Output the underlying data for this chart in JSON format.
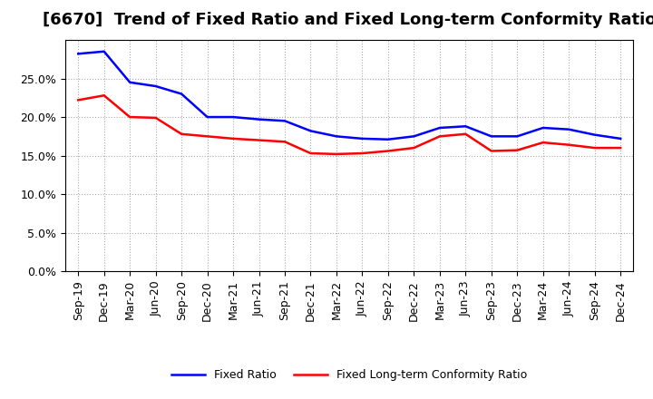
{
  "title": "[6670]  Trend of Fixed Ratio and Fixed Long-term Conformity Ratio",
  "x_labels": [
    "Sep-19",
    "Dec-19",
    "Mar-20",
    "Jun-20",
    "Sep-20",
    "Dec-20",
    "Mar-21",
    "Jun-21",
    "Sep-21",
    "Dec-21",
    "Mar-22",
    "Jun-22",
    "Sep-22",
    "Dec-22",
    "Mar-23",
    "Jun-23",
    "Sep-23",
    "Dec-23",
    "Mar-24",
    "Jun-24",
    "Sep-24",
    "Dec-24"
  ],
  "fixed_ratio": [
    0.282,
    0.285,
    0.245,
    0.24,
    0.23,
    0.2,
    0.2,
    0.197,
    0.195,
    0.182,
    0.175,
    0.172,
    0.171,
    0.175,
    0.186,
    0.188,
    0.175,
    0.175,
    0.186,
    0.184,
    0.177,
    0.172
  ],
  "fixed_lt_ratio": [
    0.222,
    0.228,
    0.2,
    0.199,
    0.178,
    0.175,
    0.172,
    0.17,
    0.168,
    0.153,
    0.152,
    0.153,
    0.156,
    0.16,
    0.175,
    0.178,
    0.156,
    0.157,
    0.167,
    0.164,
    0.16,
    0.16
  ],
  "fixed_ratio_color": "#0000FF",
  "fixed_lt_ratio_color": "#FF0000",
  "ylim": [
    0.0,
    0.3
  ],
  "yticks": [
    0.0,
    0.05,
    0.1,
    0.15,
    0.2,
    0.25
  ],
  "background_color": "#FFFFFF",
  "plot_bg_color": "#FFFFFF",
  "grid_color": "#AAAAAA",
  "legend_fixed_ratio": "Fixed Ratio",
  "legend_fixed_lt_ratio": "Fixed Long-term Conformity Ratio",
  "title_fontsize": 13,
  "tick_fontsize": 9,
  "line_width": 1.8
}
